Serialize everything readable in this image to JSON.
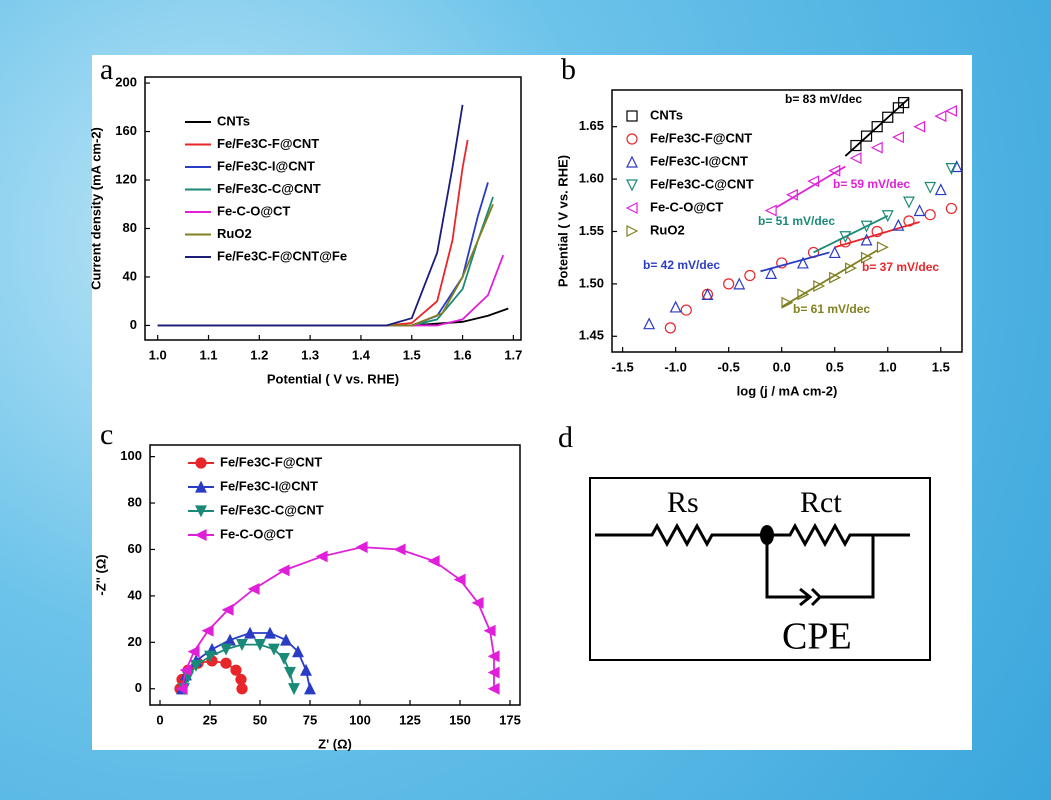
{
  "chart_data": [
    {
      "type": "line",
      "label": "a",
      "xlabel": "Potential ( V vs. RHE)",
      "ylabel": "Current density (mA cm-2)",
      "xlim": [
        0.975,
        1.715
      ],
      "ylim": [
        -12,
        205
      ],
      "xticks": [
        {
          "value": 1,
          "label": "1.0"
        },
        1.1,
        1.2,
        1.3,
        1.4,
        1.5,
        1.6,
        1.7
      ],
      "yticks": [
        0,
        40,
        80,
        120,
        160,
        200
      ],
      "legend": "upper left",
      "series": [
        {
          "name": "CNTs",
          "color": "#000000",
          "x": [
            1.0,
            1.5,
            1.6,
            1.65,
            1.69
          ],
          "values": [
            0,
            0,
            3,
            8,
            14
          ]
        },
        {
          "name": "Fe/Fe3C-F@CNT",
          "color": "#e8262a",
          "x": [
            1.0,
            1.45,
            1.5,
            1.55,
            1.58,
            1.6,
            1.61
          ],
          "values": [
            0,
            0,
            2,
            20,
            70,
            130,
            153
          ]
        },
        {
          "name": "Fe/Fe3C-I@CNT",
          "color": "#2b3cc4",
          "x": [
            1.0,
            1.5,
            1.55,
            1.6,
            1.63,
            1.65
          ],
          "values": [
            0,
            0,
            8,
            40,
            90,
            118
          ]
        },
        {
          "name": "Fe/Fe3C-C@CNT",
          "color": "#1a8a78",
          "x": [
            1.0,
            1.5,
            1.55,
            1.6,
            1.63,
            1.66
          ],
          "values": [
            0,
            0,
            5,
            30,
            70,
            106
          ]
        },
        {
          "name": "Fe-C-O@CT",
          "color": "#e020d8",
          "x": [
            1.0,
            1.55,
            1.6,
            1.65,
            1.68
          ],
          "values": [
            0,
            0,
            5,
            25,
            58
          ]
        },
        {
          "name": "RuO2",
          "color": "#808020",
          "x": [
            1.0,
            1.5,
            1.56,
            1.6,
            1.64,
            1.66
          ],
          "values": [
            0,
            0,
            10,
            40,
            80,
            100
          ]
        },
        {
          "name": "Fe/Fe3C-F@CNT@Fe",
          "color": "#1c1c7a",
          "x": [
            1.0,
            1.45,
            1.5,
            1.55,
            1.58,
            1.6
          ],
          "values": [
            0,
            0,
            6,
            60,
            130,
            182
          ]
        }
      ]
    },
    {
      "type": "scatter",
      "label": "b",
      "xlabel": "log (j / mA cm-2)",
      "ylabel": "Potential ( V vs. RHE)",
      "xlim": [
        -1.6,
        1.7
      ],
      "ylim": [
        1.435,
        1.685
      ],
      "xticks": [
        -1.5,
        {
          "value": -1,
          "label": "-1.0"
        },
        -0.5,
        {
          "value": 0,
          "label": "0.0"
        },
        0.5,
        {
          "value": 1,
          "label": "1.0"
        },
        1.5
      ],
      "yticks": [
        1.45,
        {
          "value": 1.5,
          "label": "1.50"
        },
        1.55,
        {
          "value": 1.6,
          "label": "1.60"
        },
        1.65
      ],
      "legend": "upper left",
      "series": [
        {
          "name": "CNTs",
          "color": "#000000",
          "marker": "square",
          "x": [
            0.7,
            0.8,
            0.9,
            1.0,
            1.1,
            1.15
          ],
          "values": [
            1.632,
            1.641,
            1.65,
            1.659,
            1.668,
            1.673
          ],
          "fit": {
            "x": [
              0.6,
              1.2
            ],
            "values": [
              1.622,
              1.677
            ],
            "label": "b= 83 mV/dec"
          }
        },
        {
          "name": "Fe/Fe3C-F@CNT",
          "color": "#e8262a",
          "marker": "circle",
          "x": [
            -1.05,
            -0.9,
            -0.7,
            -0.5,
            -0.3,
            0,
            0.3,
            0.6,
            0.9,
            1.2,
            1.4,
            1.6
          ],
          "values": [
            1.458,
            1.475,
            1.49,
            1.5,
            1.508,
            1.52,
            1.53,
            1.54,
            1.55,
            1.56,
            1.566,
            1.572
          ],
          "fit": {
            "x": [
              0.5,
              1.3
            ],
            "values": [
              1.535,
              1.559
            ],
            "label": "b= 37 mV/dec"
          }
        },
        {
          "name": "Fe/Fe3C-I@CNT",
          "color": "#2b3cc4",
          "marker": "triangle-up",
          "x": [
            -1.25,
            -1.0,
            -0.7,
            -0.4,
            -0.1,
            0.2,
            0.5,
            0.8,
            1.1,
            1.3,
            1.5,
            1.65
          ],
          "values": [
            1.462,
            1.478,
            1.49,
            1.5,
            1.51,
            1.52,
            1.53,
            1.542,
            1.556,
            1.57,
            1.59,
            1.612
          ],
          "fit": {
            "x": [
              -0.2,
              0.45
            ],
            "values": [
              1.512,
              1.53
            ],
            "label": "b= 42 mV/dec"
          }
        },
        {
          "name": "Fe/Fe3C-C@CNT",
          "color": "#1a8a78",
          "marker": "triangle-down",
          "x": [
            0.6,
            0.8,
            1.0,
            1.2,
            1.4,
            1.6
          ],
          "values": [
            1.545,
            1.555,
            1.565,
            1.578,
            1.592,
            1.61
          ],
          "fit": {
            "x": [
              0.3,
              1.0
            ],
            "values": [
              1.53,
              1.565
            ],
            "label": "b= 51 mV/dec"
          }
        },
        {
          "name": "Fe-C-O@CT",
          "color": "#e020d8",
          "marker": "triangle-left",
          "x": [
            -0.1,
            0.1,
            0.3,
            0.5,
            0.7,
            0.9,
            1.1,
            1.3,
            1.5,
            1.6
          ],
          "values": [
            1.57,
            1.585,
            1.598,
            1.608,
            1.62,
            1.63,
            1.64,
            1.65,
            1.66,
            1.665
          ],
          "fit": {
            "x": [
              -0.05,
              0.6
            ],
            "values": [
              1.573,
              1.612
            ],
            "label": "b= 59 mV/dec"
          }
        },
        {
          "name": "RuO2",
          "color": "#808020",
          "marker": "triangle-right",
          "x": [
            0.05,
            0.2,
            0.35,
            0.5,
            0.65,
            0.8,
            0.95
          ],
          "values": [
            1.482,
            1.49,
            1.498,
            1.506,
            1.515,
            1.525,
            1.535
          ],
          "fit": {
            "x": [
              0.0,
              0.9
            ],
            "values": [
              1.478,
              1.532
            ],
            "label": "b= 61 mV/dec"
          }
        }
      ]
    },
    {
      "type": "line",
      "label": "c",
      "markers": true,
      "xlabel": "Z' (Ω)",
      "ylabel": "-Z'' (Ω)",
      "xlim": [
        -5,
        180
      ],
      "ylim": [
        -7,
        105
      ],
      "xticks": [
        0,
        25,
        50,
        75,
        100,
        125,
        150,
        175
      ],
      "yticks": [
        0,
        20,
        40,
        60,
        80,
        100
      ],
      "legend": "upper left",
      "series": [
        {
          "name": "Fe/Fe3C-F@CNT",
          "color": "#e8262a",
          "marker": "circle",
          "x": [
            10,
            11,
            14,
            19,
            26,
            33,
            38,
            40.5,
            41
          ],
          "values": [
            0,
            4,
            8,
            11,
            12,
            11,
            8,
            4,
            0
          ]
        },
        {
          "name": "Fe/Fe3C-I@CNT",
          "color": "#2b3cc4",
          "marker": "triangle-up",
          "x": [
            11,
            13,
            18,
            26,
            35,
            45,
            55,
            63,
            69,
            73,
            75
          ],
          "values": [
            0,
            6,
            12,
            17,
            21,
            24,
            24,
            21,
            16,
            8,
            0
          ]
        },
        {
          "name": "Fe/Fe3C-C@CNT",
          "color": "#1a8a78",
          "marker": "triangle-down",
          "x": [
            12,
            14,
            18,
            25,
            33,
            41,
            50,
            57,
            62,
            65,
            67
          ],
          "values": [
            0,
            5,
            10,
            14,
            17,
            19,
            19,
            17,
            13,
            7,
            0
          ]
        },
        {
          "name": "Fe-C-O@CT",
          "color": "#e020d8",
          "marker": "triangle-left",
          "x": [
            11,
            13,
            17,
            24,
            34,
            47,
            62,
            81,
            101,
            120,
            137,
            150,
            159,
            165,
            167,
            167,
            167
          ],
          "values": [
            0,
            8,
            16,
            25,
            34,
            43,
            51,
            57,
            61,
            60,
            55,
            47,
            37,
            25,
            14,
            7,
            0
          ]
        }
      ]
    }
  ],
  "diagram": {
    "label": "d",
    "resistor_1": "Rs",
    "resistor_2": "Rct",
    "element": "CPE"
  }
}
